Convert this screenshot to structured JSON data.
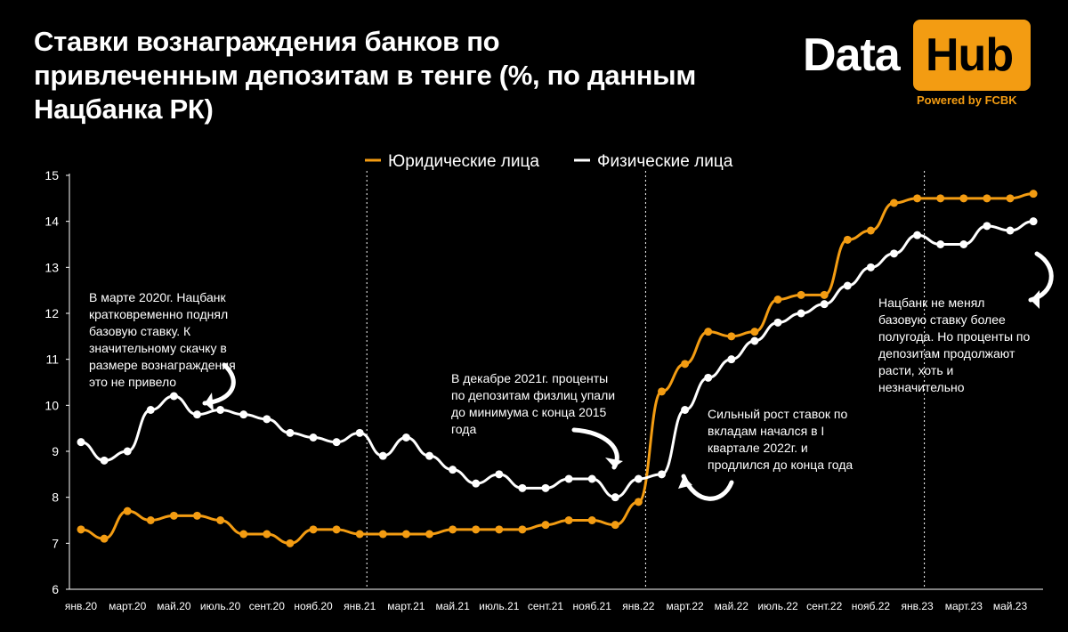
{
  "title": "Ставки вознаграждения банков по привлеченным депозитам в тенге (%, по данным Нацбанка РК)",
  "logo": {
    "data": "Data",
    "hub": "Hub",
    "powered": "Powered by FCBK"
  },
  "colors": {
    "orange": "#f39c12",
    "white": "#ffffff",
    "background": "#000000"
  },
  "chart_data": {
    "type": "line",
    "x": [
      "янв.20",
      "фев.20",
      "март.20",
      "апр.20",
      "май.20",
      "июнь.20",
      "июль.20",
      "авг.20",
      "сент.20",
      "окт.20",
      "нояб.20",
      "дек.20",
      "янв.21",
      "фев.21",
      "март.21",
      "апр.21",
      "май.21",
      "июнь.21",
      "июль.21",
      "авг.21",
      "сент.21",
      "окт.21",
      "нояб.21",
      "дек.21",
      "янв.22",
      "фев.22",
      "март.22",
      "апр.22",
      "май.22",
      "июнь.22",
      "июль.22",
      "авг.22",
      "сент.22",
      "окт.22",
      "нояб.22",
      "дек.22",
      "янв.23",
      "фев.23",
      "март.23",
      "апр.23",
      "май.23",
      "июнь.23"
    ],
    "tick_labels": [
      "янв.20",
      "март.20",
      "май.20",
      "июль.20",
      "сент.20",
      "нояб.20",
      "янв.21",
      "март.21",
      "май.21",
      "июль.21",
      "сент.21",
      "нояб.21",
      "янв.22",
      "март.22",
      "май.22",
      "июль.22",
      "сент.22",
      "нояб.22",
      "янв.23",
      "март.23",
      "май.23"
    ],
    "ylim": [
      6,
      15
    ],
    "yticks": [
      6,
      7,
      8,
      9,
      10,
      11,
      12,
      13,
      14,
      15
    ],
    "legend_position": "top-center",
    "vertical_lines_at": [
      "янв.21",
      "янв.22",
      "янв.23"
    ],
    "series": [
      {
        "name": "Юридические лица",
        "color": "#f39c12",
        "values": [
          7.3,
          7.1,
          7.7,
          7.5,
          7.6,
          7.6,
          7.5,
          7.2,
          7.2,
          7.0,
          7.3,
          7.3,
          7.2,
          7.2,
          7.2,
          7.2,
          7.3,
          7.3,
          7.3,
          7.3,
          7.4,
          7.5,
          7.5,
          7.4,
          7.9,
          10.3,
          10.9,
          11.6,
          11.5,
          11.6,
          12.3,
          12.4,
          12.4,
          13.6,
          13.8,
          14.4,
          14.5,
          14.5,
          14.5,
          14.5,
          14.5,
          14.6
        ]
      },
      {
        "name": "Физические лица",
        "color": "#ffffff",
        "values": [
          9.2,
          8.8,
          9.0,
          9.9,
          10.2,
          9.8,
          9.9,
          9.8,
          9.7,
          9.4,
          9.3,
          9.2,
          9.4,
          8.9,
          9.3,
          8.9,
          8.6,
          8.3,
          8.5,
          8.2,
          8.2,
          8.4,
          8.4,
          8.0,
          8.4,
          8.5,
          9.9,
          10.6,
          11.0,
          11.4,
          11.8,
          12.0,
          12.2,
          12.6,
          13.0,
          13.3,
          13.7,
          13.5,
          13.5,
          13.9,
          13.8,
          14.0
        ]
      }
    ],
    "annotations": [
      {
        "text": [
          "В марте 2020г. Нацбанк",
          "кратковременно поднял",
          "базовую ставку. К",
          "значительному скачку в",
          "размере вознаграждения",
          "это не привело"
        ]
      },
      {
        "text": [
          "В декабре 2021г. проценты",
          "по депозитам физлиц упали",
          "до минимума с конца 2015",
          "года"
        ]
      },
      {
        "text": [
          "Сильный рост ставок по",
          "вкладам начался в I",
          "квартале 2022г. и",
          "продлился до конца года"
        ]
      },
      {
        "text": [
          "Нацбанк не менял",
          "базовую ставку более",
          "полугода. Но проценты по",
          "депозитам продолжают",
          "расти, хоть и",
          "незначительно"
        ]
      }
    ]
  }
}
